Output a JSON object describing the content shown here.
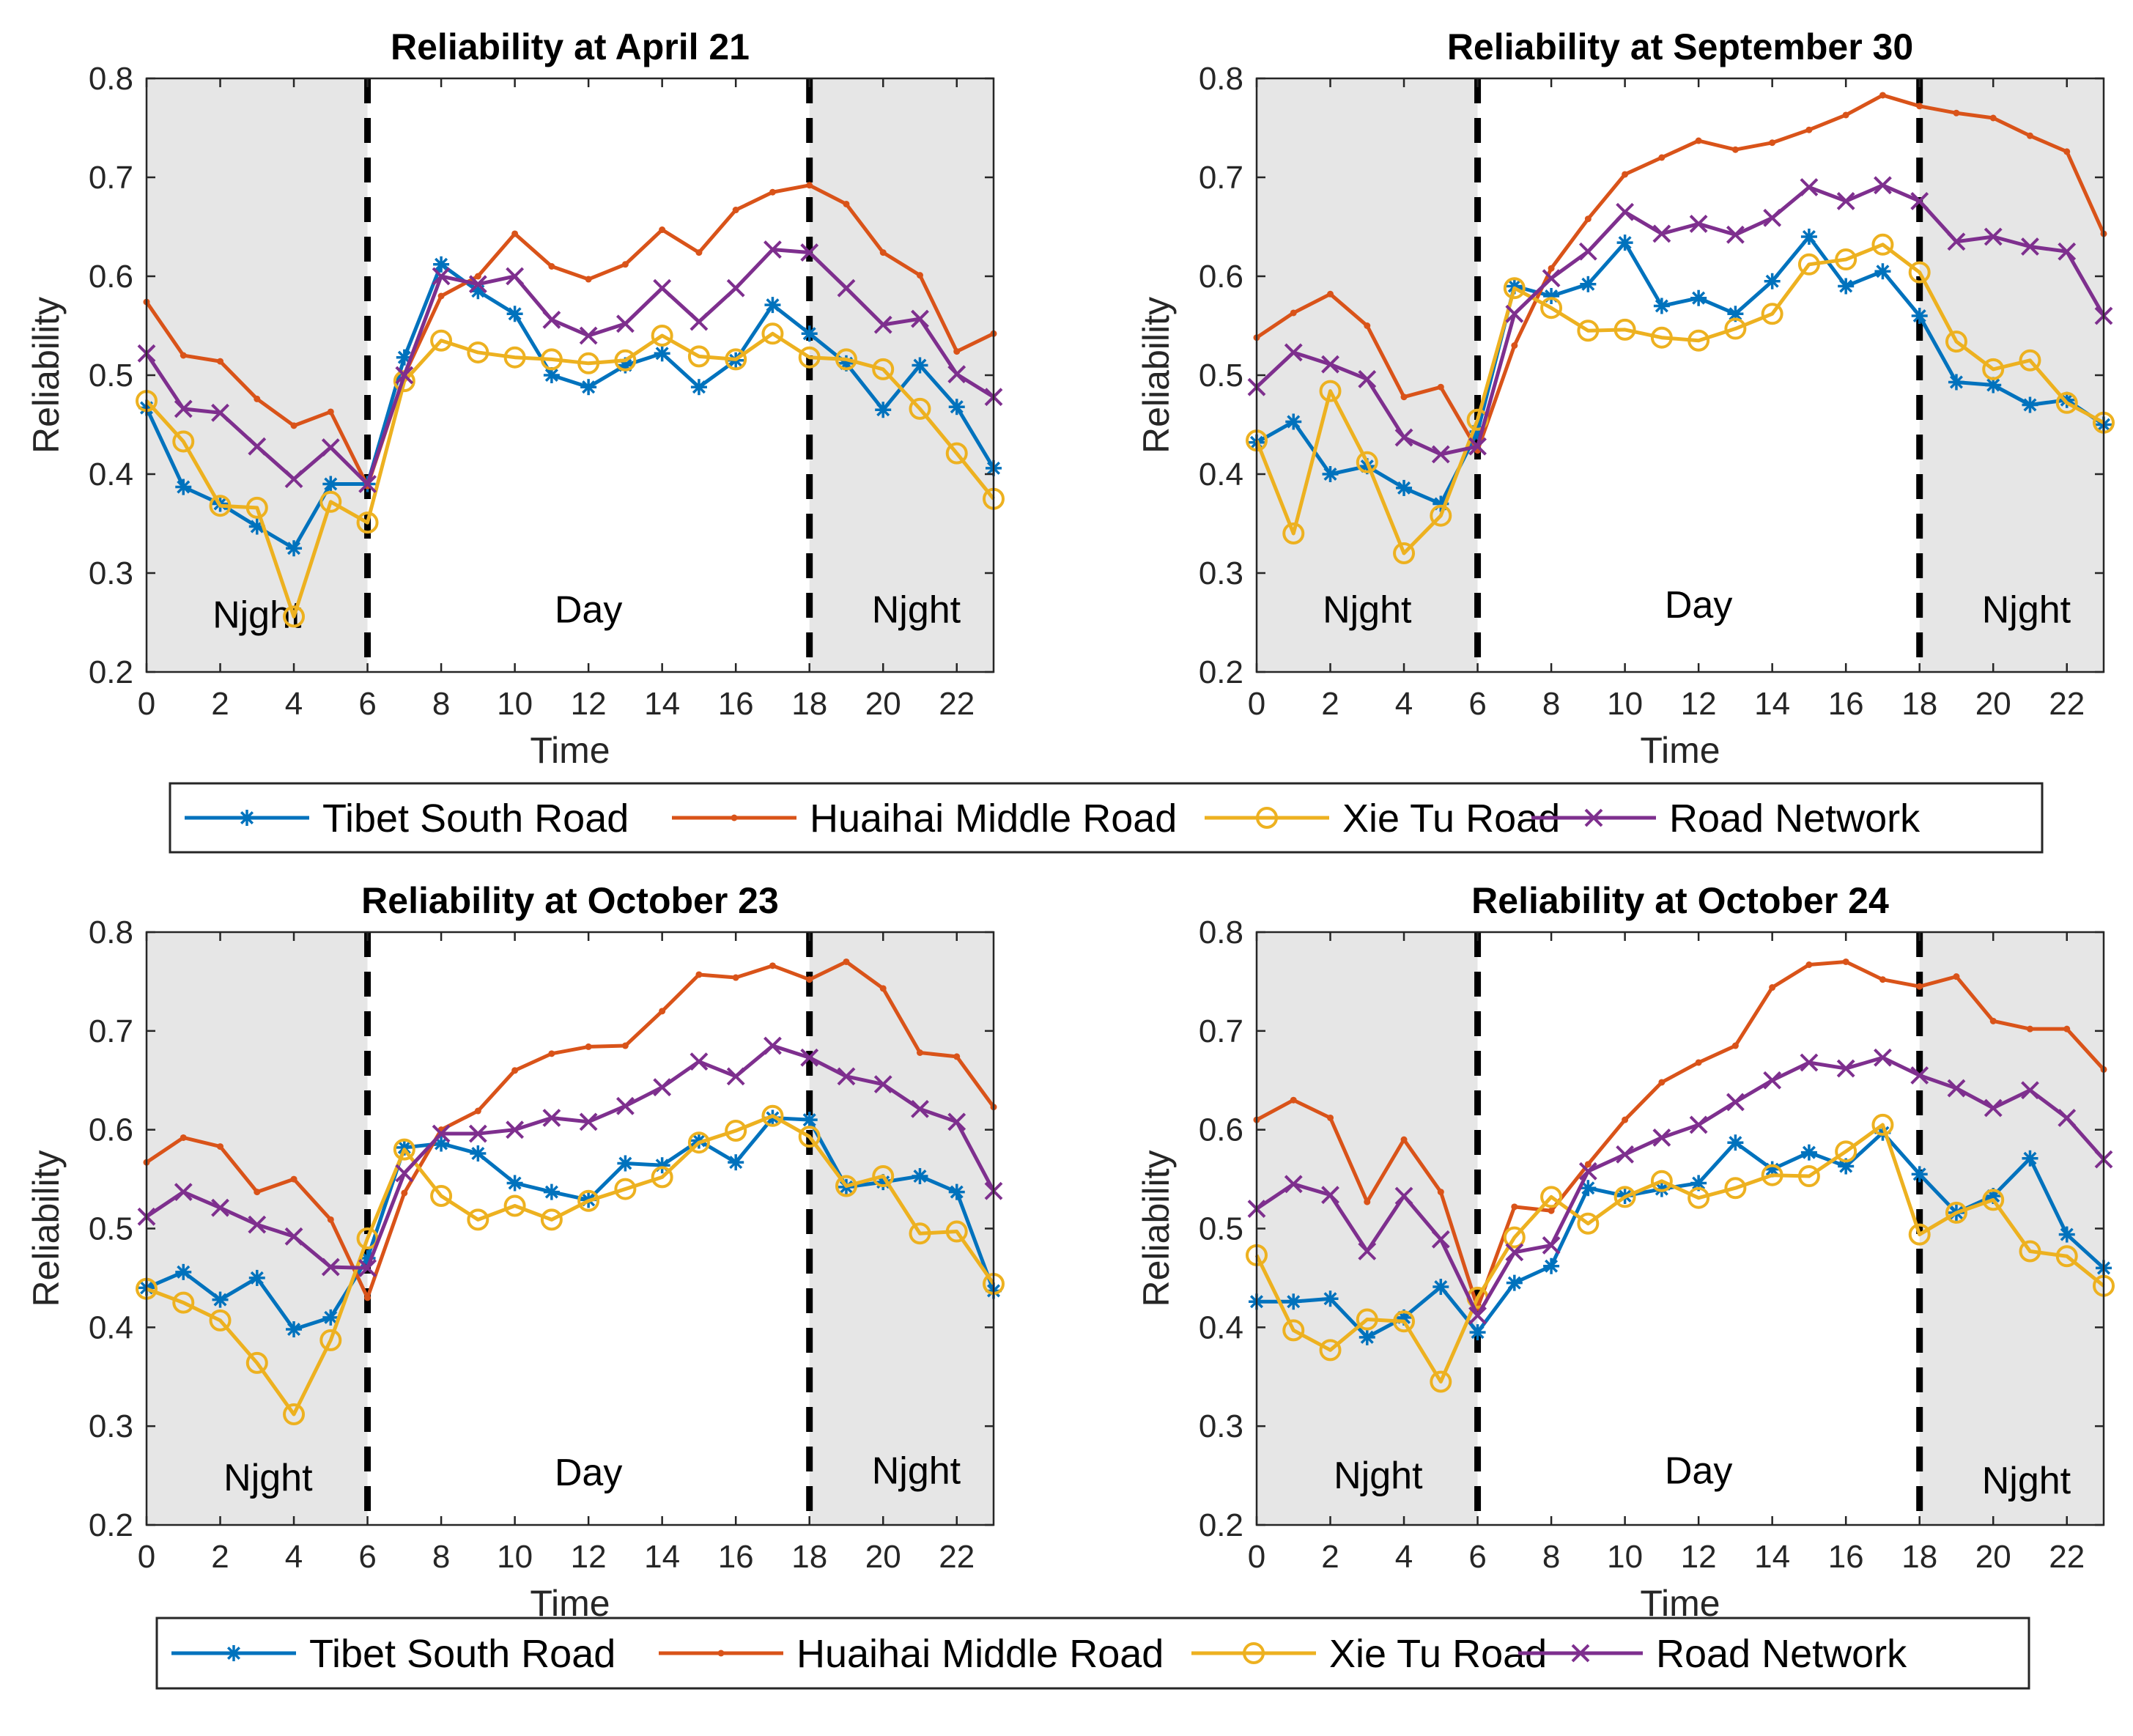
{
  "chart_data": [
    {
      "type": "line",
      "title": "Reliability at April 21",
      "xlabel": "Time",
      "ylabel": "Reliability",
      "xlim": [
        0,
        23
      ],
      "ylim": [
        0.2,
        0.8
      ],
      "xticks": [
        "0",
        "2",
        "4",
        "6",
        "8",
        "10",
        "12",
        "14",
        "16",
        "18",
        "20",
        "22"
      ],
      "yticks": [
        "0.2",
        "0.3",
        "0.4",
        "0.5",
        "0.6",
        "0.7",
        "0.8"
      ],
      "regions": [
        "Njght",
        "Day",
        "Njght"
      ],
      "x": [
        0,
        1,
        2,
        3,
        4,
        5,
        6,
        7,
        8,
        9,
        10,
        11,
        12,
        13,
        14,
        15,
        16,
        17,
        18,
        19,
        20,
        21,
        22,
        23
      ],
      "series": [
        {
          "name": "Tibet South Road",
          "values": [
            0.467,
            0.387,
            0.37,
            0.347,
            0.325,
            0.39,
            0.39,
            0.518,
            0.612,
            0.585,
            0.562,
            0.5,
            0.488,
            0.51,
            0.522,
            0.488,
            0.515,
            0.571,
            0.542,
            0.512,
            0.465,
            0.51,
            0.468,
            0.406
          ]
        },
        {
          "name": "Huaihai Middle Road",
          "values": [
            0.574,
            0.52,
            0.514,
            0.476,
            0.449,
            0.463,
            0.388,
            0.5,
            0.58,
            0.6,
            0.643,
            0.61,
            0.597,
            0.612,
            0.647,
            0.624,
            0.667,
            0.685,
            0.692,
            0.673,
            0.624,
            0.601,
            0.524,
            0.542
          ]
        },
        {
          "name": "Xie Tu Road",
          "values": [
            0.474,
            0.433,
            0.368,
            0.366,
            0.256,
            0.372,
            0.351,
            0.494,
            0.535,
            0.523,
            0.518,
            0.516,
            0.512,
            0.515,
            0.54,
            0.519,
            0.516,
            0.542,
            0.518,
            0.516,
            0.506,
            0.466,
            0.421,
            0.375
          ]
        },
        {
          "name": "Road Network",
          "values": [
            0.522,
            0.466,
            0.462,
            0.428,
            0.395,
            0.427,
            0.39,
            0.5,
            0.6,
            0.592,
            0.6,
            0.556,
            0.54,
            0.552,
            0.588,
            0.554,
            0.588,
            0.627,
            0.624,
            0.588,
            0.551,
            0.557,
            0.501,
            0.478
          ]
        }
      ]
    },
    {
      "type": "line",
      "title": "Reliability at September 30",
      "xlabel": "Time",
      "ylabel": "Reliability",
      "xlim": [
        0,
        23
      ],
      "ylim": [
        0.2,
        0.8
      ],
      "xticks": [
        "0",
        "2",
        "4",
        "6",
        "8",
        "10",
        "12",
        "14",
        "16",
        "18",
        "20",
        "22"
      ],
      "yticks": [
        "0.2",
        "0.3",
        "0.4",
        "0.5",
        "0.6",
        "0.7",
        "0.8"
      ],
      "regions": [
        "Njght",
        "Day",
        "Njght"
      ],
      "x": [
        0,
        1,
        2,
        3,
        4,
        5,
        6,
        7,
        8,
        9,
        10,
        11,
        12,
        13,
        14,
        15,
        16,
        17,
        18,
        19,
        20,
        21,
        22,
        23
      ],
      "series": [
        {
          "name": "Tibet South Road",
          "values": [
            0.432,
            0.453,
            0.4,
            0.408,
            0.386,
            0.37,
            0.443,
            0.59,
            0.58,
            0.592,
            0.634,
            0.57,
            0.578,
            0.562,
            0.595,
            0.64,
            0.59,
            0.605,
            0.56,
            0.493,
            0.49,
            0.47,
            0.475,
            0.45
          ]
        },
        {
          "name": "Huaihai Middle Road",
          "values": [
            0.538,
            0.563,
            0.582,
            0.55,
            0.478,
            0.488,
            0.424,
            0.53,
            0.608,
            0.658,
            0.703,
            0.72,
            0.737,
            0.728,
            0.735,
            0.748,
            0.763,
            0.783,
            0.772,
            0.765,
            0.76,
            0.742,
            0.726,
            0.643
          ]
        },
        {
          "name": "Xie Tu Road",
          "values": [
            0.434,
            0.34,
            0.484,
            0.412,
            0.32,
            0.358,
            0.455,
            0.588,
            0.568,
            0.545,
            0.546,
            0.538,
            0.535,
            0.547,
            0.562,
            0.612,
            0.617,
            0.632,
            0.604,
            0.534,
            0.506,
            0.515,
            0.472,
            0.452
          ]
        },
        {
          "name": "Road Network",
          "values": [
            0.488,
            0.523,
            0.511,
            0.496,
            0.437,
            0.42,
            0.428,
            0.562,
            0.598,
            0.625,
            0.665,
            0.643,
            0.653,
            0.642,
            0.659,
            0.69,
            0.676,
            0.692,
            0.676,
            0.635,
            0.64,
            0.63,
            0.625,
            0.56
          ]
        }
      ]
    },
    {
      "type": "line",
      "title": "Reliability at October 23",
      "xlabel": "Time",
      "ylabel": "Reliability",
      "xlim": [
        0,
        23
      ],
      "ylim": [
        0.2,
        0.8
      ],
      "xticks": [
        "0",
        "2",
        "4",
        "6",
        "8",
        "10",
        "12",
        "14",
        "16",
        "18",
        "20",
        "22"
      ],
      "yticks": [
        "0.2",
        "0.3",
        "0.4",
        "0.5",
        "0.6",
        "0.7",
        "0.8"
      ],
      "regions": [
        "Njght",
        "Day",
        "Njght"
      ],
      "x": [
        0,
        1,
        2,
        3,
        4,
        5,
        6,
        7,
        8,
        9,
        10,
        11,
        12,
        13,
        14,
        15,
        16,
        17,
        18,
        19,
        20,
        21,
        22,
        23
      ],
      "series": [
        {
          "name": "Tibet South Road",
          "values": [
            0.44,
            0.456,
            0.428,
            0.45,
            0.398,
            0.41,
            0.47,
            0.582,
            0.586,
            0.576,
            0.546,
            0.537,
            0.529,
            0.566,
            0.564,
            0.589,
            0.567,
            0.612,
            0.61,
            0.542,
            0.547,
            0.553,
            0.537,
            0.437
          ]
        },
        {
          "name": "Huaihai Middle Road",
          "values": [
            0.567,
            0.592,
            0.583,
            0.537,
            0.55,
            0.509,
            0.43,
            0.536,
            0.6,
            0.619,
            0.66,
            0.677,
            0.684,
            0.685,
            0.72,
            0.757,
            0.754,
            0.766,
            0.752,
            0.77,
            0.743,
            0.678,
            0.674,
            0.623
          ]
        },
        {
          "name": "Xie Tu Road",
          "values": [
            0.439,
            0.425,
            0.407,
            0.364,
            0.312,
            0.387,
            0.49,
            0.58,
            0.533,
            0.509,
            0.523,
            0.509,
            0.528,
            0.54,
            0.552,
            0.587,
            0.599,
            0.614,
            0.593,
            0.543,
            0.553,
            0.495,
            0.497,
            0.444
          ]
        },
        {
          "name": "Road Network",
          "values": [
            0.512,
            0.537,
            0.521,
            0.504,
            0.492,
            0.461,
            0.46,
            0.556,
            0.596,
            0.596,
            0.6,
            0.612,
            0.608,
            0.624,
            0.643,
            0.669,
            0.654,
            0.685,
            0.673,
            0.654,
            0.646,
            0.621,
            0.608,
            0.538
          ]
        }
      ]
    },
    {
      "type": "line",
      "title": "Reliability at October 24",
      "xlabel": "Time",
      "ylabel": "Reliability",
      "xlim": [
        0,
        23
      ],
      "ylim": [
        0.2,
        0.8
      ],
      "xticks": [
        "0",
        "2",
        "4",
        "6",
        "8",
        "10",
        "12",
        "14",
        "16",
        "18",
        "20",
        "22"
      ],
      "yticks": [
        "0.2",
        "0.3",
        "0.4",
        "0.5",
        "0.6",
        "0.7",
        "0.8"
      ],
      "regions": [
        "Njght",
        "Day",
        "Njght"
      ],
      "x": [
        0,
        1,
        2,
        3,
        4,
        5,
        6,
        7,
        8,
        9,
        10,
        11,
        12,
        13,
        14,
        15,
        16,
        17,
        18,
        19,
        20,
        21,
        22,
        23
      ],
      "series": [
        {
          "name": "Tibet South Road",
          "values": [
            0.426,
            0.426,
            0.429,
            0.39,
            0.41,
            0.441,
            0.395,
            0.445,
            0.462,
            0.541,
            0.533,
            0.54,
            0.546,
            0.587,
            0.56,
            0.577,
            0.563,
            0.597,
            0.555,
            0.516,
            0.533,
            0.571,
            0.494,
            0.46
          ]
        },
        {
          "name": "Huaihai Middle Road",
          "values": [
            0.61,
            0.63,
            0.612,
            0.527,
            0.59,
            0.537,
            0.42,
            0.522,
            0.518,
            0.565,
            0.61,
            0.648,
            0.668,
            0.685,
            0.744,
            0.767,
            0.77,
            0.752,
            0.745,
            0.755,
            0.71,
            0.702,
            0.702,
            0.661
          ]
        },
        {
          "name": "Xie Tu Road",
          "values": [
            0.473,
            0.397,
            0.377,
            0.408,
            0.406,
            0.345,
            0.43,
            0.491,
            0.532,
            0.505,
            0.532,
            0.548,
            0.531,
            0.541,
            0.554,
            0.553,
            0.578,
            0.605,
            0.494,
            0.516,
            0.529,
            0.477,
            0.472,
            0.442
          ]
        },
        {
          "name": "Road Network",
          "values": [
            0.52,
            0.545,
            0.534,
            0.477,
            0.533,
            0.489,
            0.412,
            0.476,
            0.483,
            0.558,
            0.575,
            0.592,
            0.605,
            0.628,
            0.65,
            0.668,
            0.662,
            0.673,
            0.655,
            0.642,
            0.622,
            0.64,
            0.612,
            0.57
          ]
        }
      ]
    }
  ],
  "legend": {
    "entries": [
      "Tibet South Road",
      "Huaihai Middle Road",
      "Xie Tu Road",
      "Road Network"
    ]
  },
  "colors": {
    "Tibet South Road": "#0072BD",
    "Huaihai Middle Road": "#D95319",
    "Xie Tu Road": "#EDB120",
    "Road Network": "#7E2F8E",
    "night_shade": "#E6E6E6"
  },
  "markers": {
    "Tibet South Road": "asterisk",
    "Huaihai Middle Road": "dot",
    "Xie Tu Road": "circle",
    "Road Network": "x-mark"
  }
}
